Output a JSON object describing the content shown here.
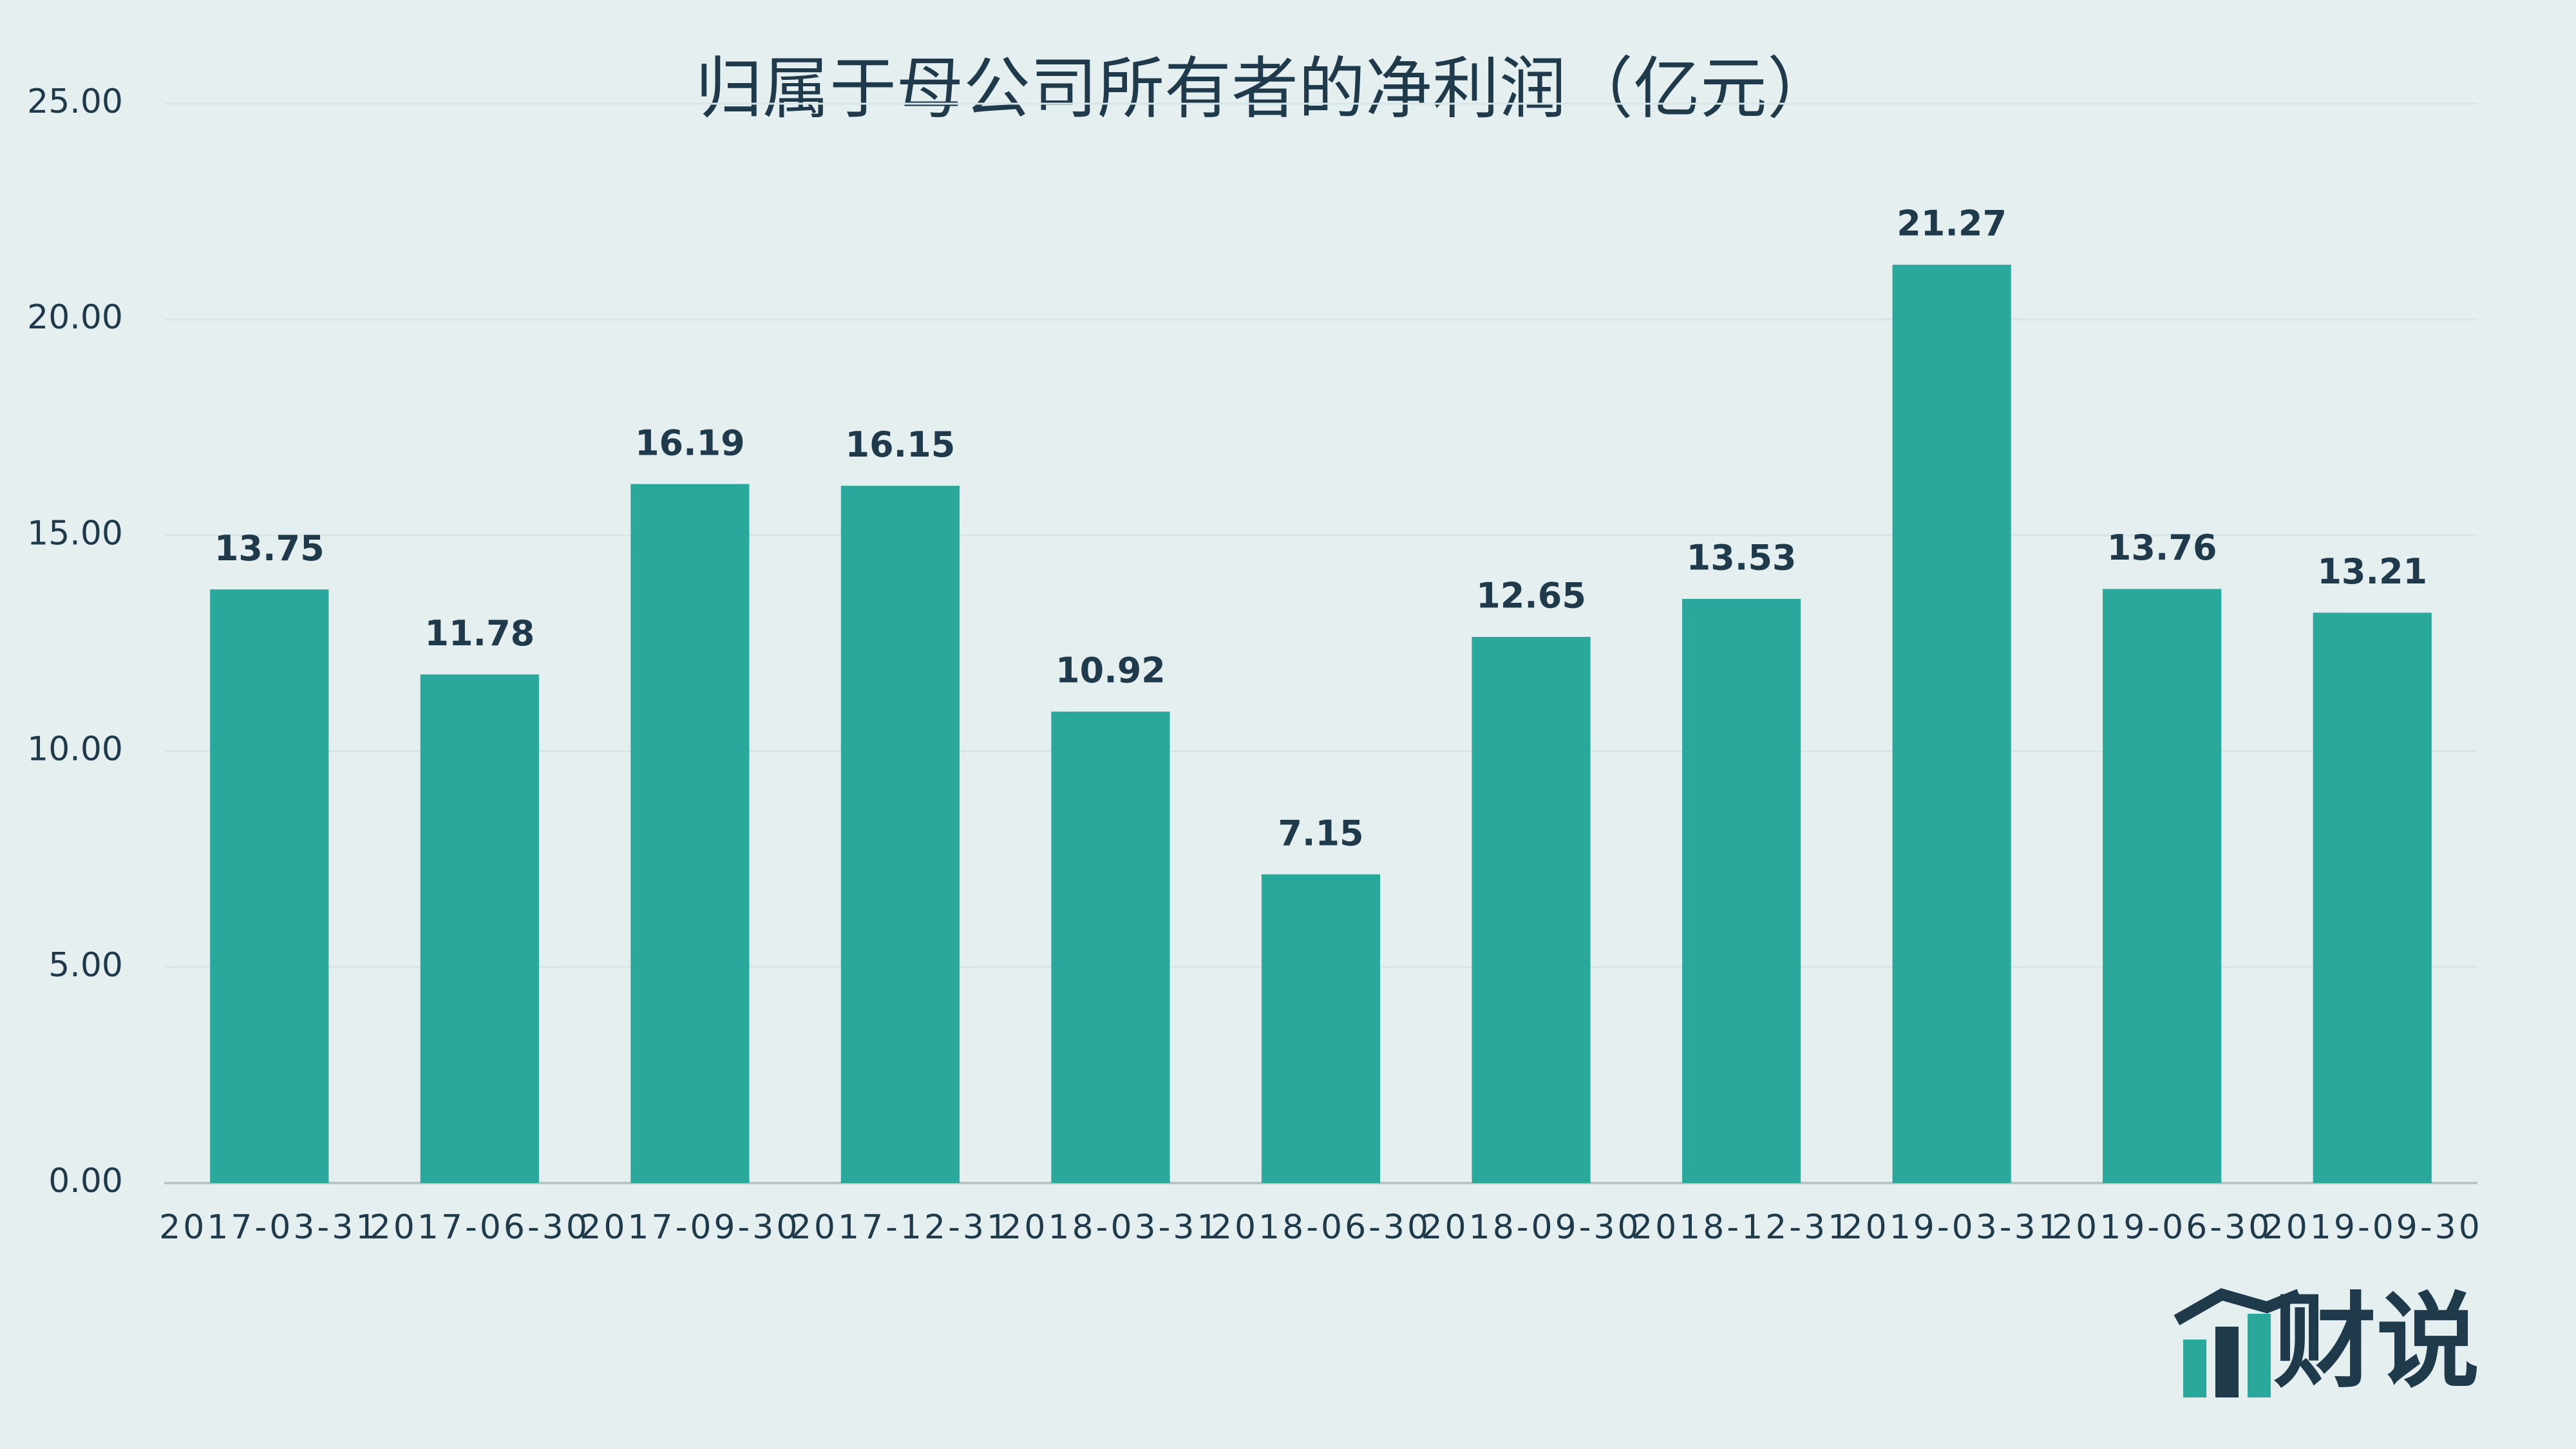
{
  "chart_data": {
    "type": "bar",
    "title": "归属于母公司所有者的净利润（亿元）",
    "categories": [
      "2017-03-31",
      "2017-06-30",
      "2017-09-30",
      "2017-12-31",
      "2018-03-31",
      "2018-06-30",
      "2018-09-30",
      "2018-12-31",
      "2019-03-31",
      "2019-06-30",
      "2019-09-30"
    ],
    "values": [
      13.75,
      11.78,
      16.19,
      16.15,
      10.92,
      7.15,
      12.65,
      13.53,
      21.27,
      13.76,
      13.21
    ],
    "color": "#2aa89b",
    "ylim": [
      0,
      25
    ],
    "yticks": [
      {
        "value": 0,
        "label": "0.00"
      },
      {
        "value": 5,
        "label": "5.00"
      },
      {
        "value": 10,
        "label": "10.00"
      },
      {
        "value": 15,
        "label": "15.00"
      },
      {
        "value": 20,
        "label": "20.00"
      },
      {
        "value": 25,
        "label": "25.00"
      }
    ],
    "grid": true
  },
  "logo": "财说"
}
